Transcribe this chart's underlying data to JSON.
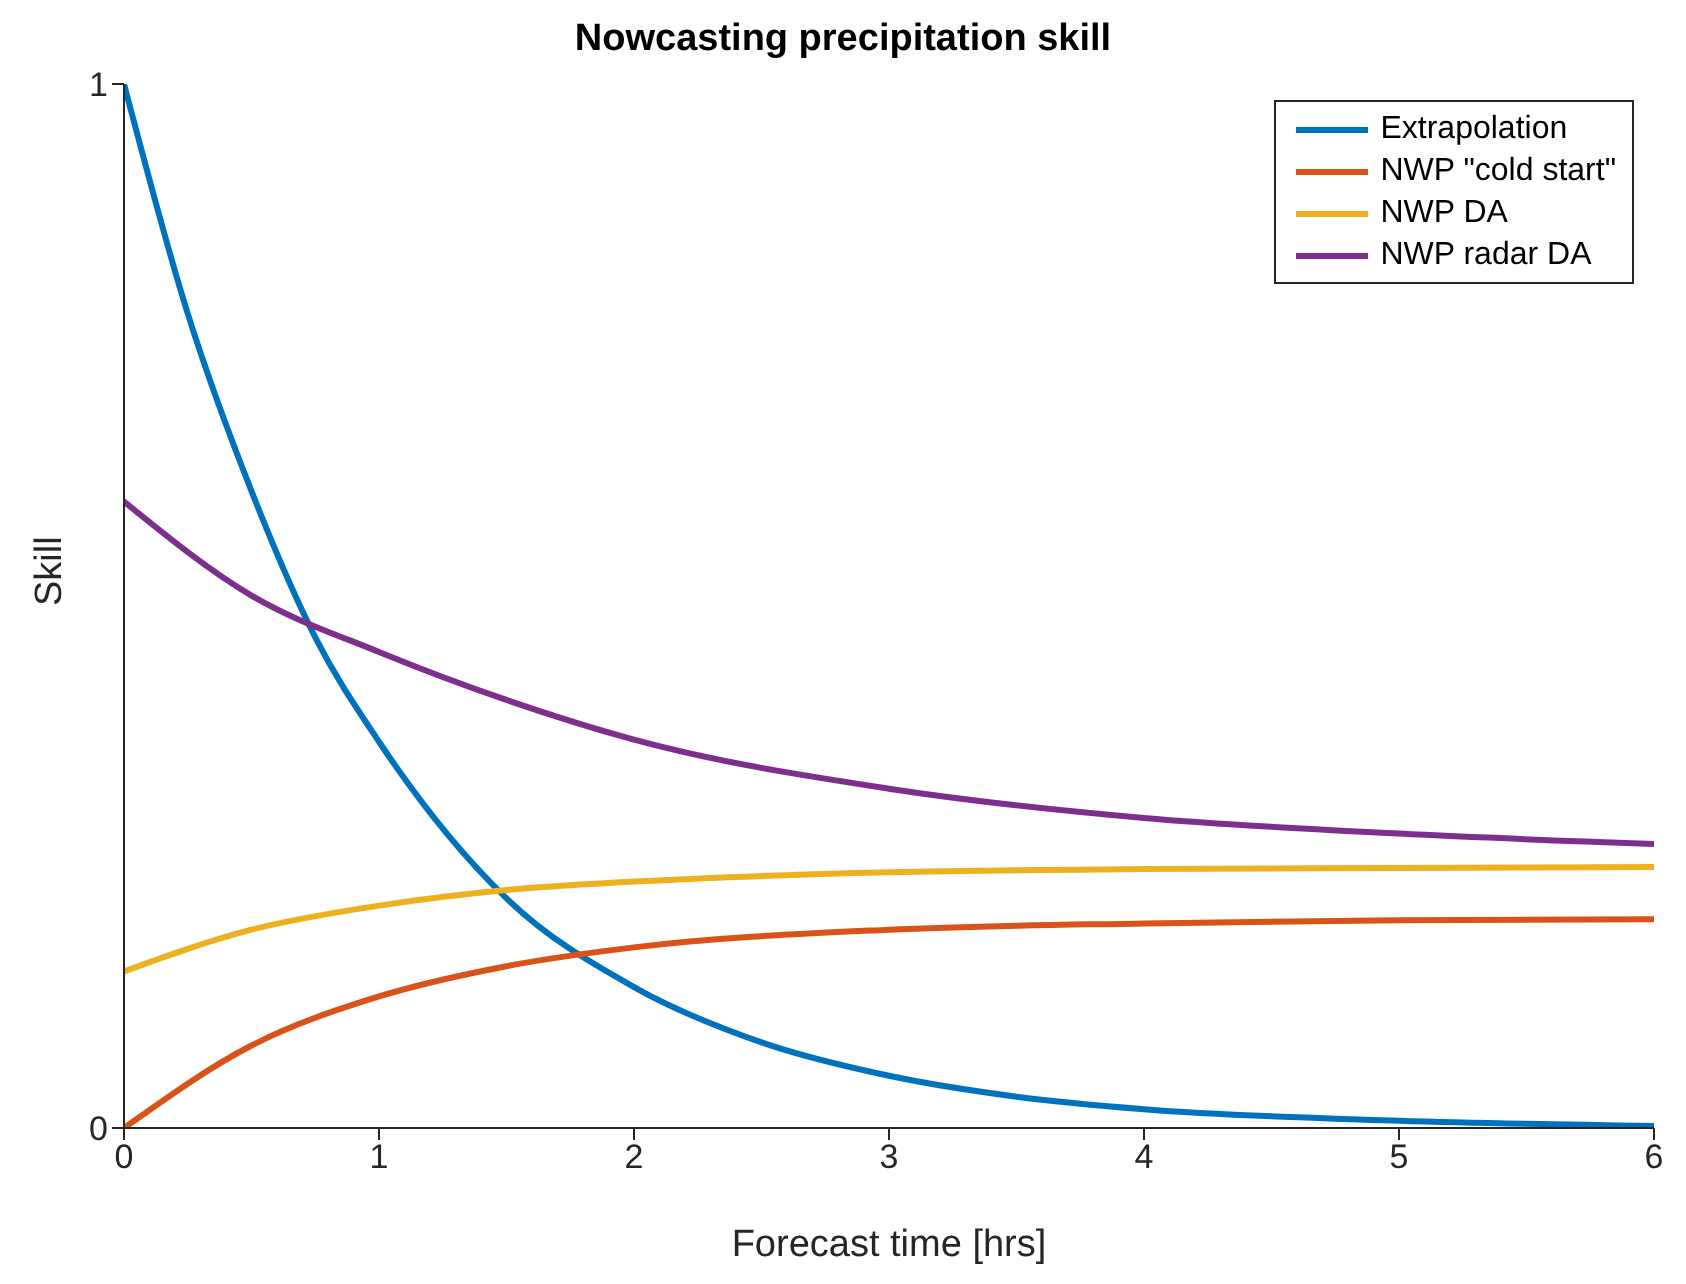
{
  "chart_data": {
    "type": "line",
    "title": "Nowcasting precipitation skill",
    "xlabel": "Forecast time [hrs]",
    "ylabel": "Skill",
    "xlim": [
      0,
      6
    ],
    "xticks": [
      0,
      1,
      2,
      3,
      4,
      5,
      6
    ],
    "ylim": [
      0,
      1
    ],
    "yticks": [
      0,
      1
    ],
    "legend": "top right",
    "marker": "none",
    "line_style": "solid",
    "series": [
      {
        "name": "Extrapolation",
        "color": "#0072bd",
        "x": [
          0,
          0.25,
          0.5,
          0.75,
          1,
          1.5,
          2,
          2.5,
          3,
          3.5,
          4,
          5,
          6
        ],
        "values": [
          1,
          0.78,
          0.61,
          0.47,
          0.37,
          0.22,
          0.135,
          0.082,
          0.05,
          0.03,
          0.018,
          0.007,
          0.002
        ]
      },
      {
        "name": "NWP \"cold start\"",
        "color": "#d95319",
        "x": [
          0,
          0.5,
          1,
          1.5,
          2,
          3,
          4,
          5,
          6
        ],
        "values": [
          0,
          0.079,
          0.126,
          0.155,
          0.173,
          0.19,
          0.196,
          0.199,
          0.2
        ]
      },
      {
        "name": "NWP DA",
        "color": "#edb120",
        "x": [
          0,
          0.5,
          1,
          1.5,
          2,
          3,
          4,
          5,
          6
        ],
        "values": [
          0.15,
          0.19,
          0.213,
          0.228,
          0.236,
          0.245,
          0.248,
          0.249,
          0.25
        ]
      },
      {
        "name": "NWP radar DA",
        "color": "#7e2f8e",
        "x": [
          0,
          0.5,
          1,
          1.5,
          2,
          3,
          4,
          5,
          6
        ],
        "values": [
          0.6,
          0.51,
          0.456,
          0.41,
          0.372,
          0.325,
          0.297,
          0.282,
          0.272
        ]
      }
    ]
  }
}
